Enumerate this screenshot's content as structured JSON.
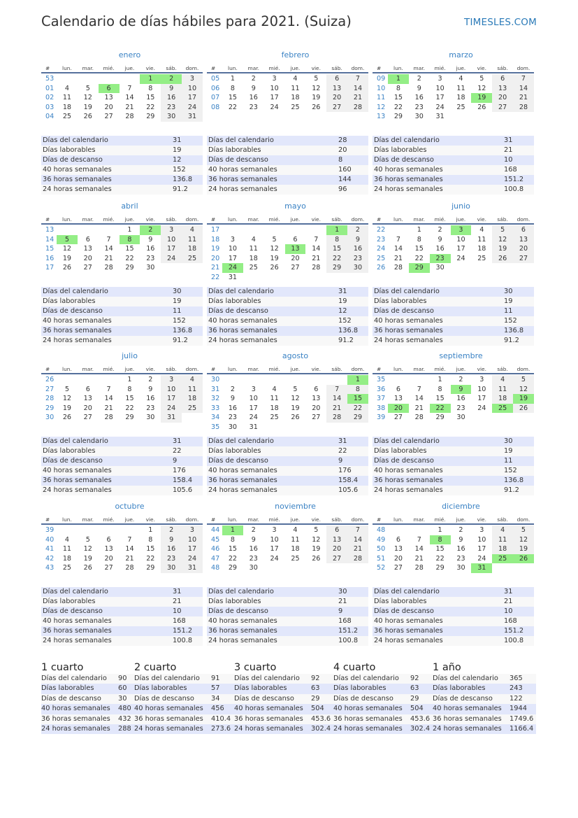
{
  "header": {
    "title": "Calendario de días hábiles para 2021. (Suiza)",
    "brand": "TIMESLES.COM"
  },
  "colors": {
    "accent": "#3a82c4",
    "holiday": "#94ee86",
    "weekend": "#f0f0f0",
    "stat_row": "#e2e7fb",
    "header_rule": "#55709c"
  },
  "weekday_headers": [
    "#",
    "lun.",
    "mar.",
    "mié.",
    "jue.",
    "vie.",
    "sáb.",
    "dom."
  ],
  "stat_labels": [
    "Días del calendario",
    "Días laborables",
    "Días de descanso",
    "40 horas semanales",
    "36 horas semanales",
    "24 horas semanales"
  ],
  "months": [
    {
      "name": "enero",
      "holidays": [
        "1",
        "2",
        "6"
      ],
      "stats": [
        "31",
        "19",
        "12",
        "152",
        "136.8",
        "91.2"
      ],
      "weeks": [
        {
          "wk": "53",
          "days": [
            "",
            "",
            "",
            "",
            "1",
            "2",
            "3"
          ]
        },
        {
          "wk": "01",
          "days": [
            "4",
            "5",
            "6",
            "7",
            "8",
            "9",
            "10"
          ]
        },
        {
          "wk": "02",
          "days": [
            "11",
            "12",
            "13",
            "14",
            "15",
            "16",
            "17"
          ]
        },
        {
          "wk": "03",
          "days": [
            "18",
            "19",
            "20",
            "21",
            "22",
            "23",
            "24"
          ]
        },
        {
          "wk": "04",
          "days": [
            "25",
            "26",
            "27",
            "28",
            "29",
            "30",
            "31"
          ]
        }
      ]
    },
    {
      "name": "febrero",
      "holidays": [],
      "stats": [
        "28",
        "20",
        "8",
        "160",
        "144",
        "96"
      ],
      "weeks": [
        {
          "wk": "05",
          "days": [
            "1",
            "2",
            "3",
            "4",
            "5",
            "6",
            "7"
          ]
        },
        {
          "wk": "06",
          "days": [
            "8",
            "9",
            "10",
            "11",
            "12",
            "13",
            "14"
          ]
        },
        {
          "wk": "07",
          "days": [
            "15",
            "16",
            "17",
            "18",
            "19",
            "20",
            "21"
          ]
        },
        {
          "wk": "08",
          "days": [
            "22",
            "23",
            "24",
            "25",
            "26",
            "27",
            "28"
          ]
        }
      ]
    },
    {
      "name": "marzo",
      "holidays": [
        "1",
        "19"
      ],
      "stats": [
        "31",
        "21",
        "10",
        "168",
        "151.2",
        "100.8"
      ],
      "weeks": [
        {
          "wk": "09",
          "days": [
            "1",
            "2",
            "3",
            "4",
            "5",
            "6",
            "7"
          ]
        },
        {
          "wk": "10",
          "days": [
            "8",
            "9",
            "10",
            "11",
            "12",
            "13",
            "14"
          ]
        },
        {
          "wk": "11",
          "days": [
            "15",
            "16",
            "17",
            "18",
            "19",
            "20",
            "21"
          ]
        },
        {
          "wk": "12",
          "days": [
            "22",
            "23",
            "24",
            "25",
            "26",
            "27",
            "28"
          ]
        },
        {
          "wk": "13",
          "days": [
            "29",
            "30",
            "31",
            "",
            "",
            "",
            ""
          ]
        }
      ]
    },
    {
      "name": "abril",
      "holidays": [
        "2",
        "5",
        "8"
      ],
      "stats": [
        "30",
        "19",
        "11",
        "152",
        "136.8",
        "91.2"
      ],
      "weeks": [
        {
          "wk": "13",
          "days": [
            "",
            "",
            "",
            "1",
            "2",
            "3",
            "4"
          ]
        },
        {
          "wk": "14",
          "days": [
            "5",
            "6",
            "7",
            "8",
            "9",
            "10",
            "11"
          ]
        },
        {
          "wk": "15",
          "days": [
            "12",
            "13",
            "14",
            "15",
            "16",
            "17",
            "18"
          ]
        },
        {
          "wk": "16",
          "days": [
            "19",
            "20",
            "21",
            "22",
            "23",
            "24",
            "25"
          ]
        },
        {
          "wk": "17",
          "days": [
            "26",
            "27",
            "28",
            "29",
            "30",
            "",
            ""
          ]
        }
      ]
    },
    {
      "name": "mayo",
      "holidays": [
        "1",
        "13",
        "24"
      ],
      "stats": [
        "31",
        "19",
        "12",
        "152",
        "136.8",
        "91.2"
      ],
      "weeks": [
        {
          "wk": "17",
          "days": [
            "",
            "",
            "",
            "",
            "",
            "1",
            "2"
          ]
        },
        {
          "wk": "18",
          "days": [
            "3",
            "4",
            "5",
            "6",
            "7",
            "8",
            "9"
          ]
        },
        {
          "wk": "19",
          "days": [
            "10",
            "11",
            "12",
            "13",
            "14",
            "15",
            "16"
          ]
        },
        {
          "wk": "20",
          "days": [
            "17",
            "18",
            "19",
            "20",
            "21",
            "22",
            "23"
          ]
        },
        {
          "wk": "21",
          "days": [
            "24",
            "25",
            "26",
            "27",
            "28",
            "29",
            "30"
          ]
        },
        {
          "wk": "22",
          "days": [
            "31",
            "",
            "",
            "",
            "",
            "",
            ""
          ]
        }
      ]
    },
    {
      "name": "junio",
      "holidays": [
        "3",
        "23",
        "29"
      ],
      "stats": [
        "30",
        "19",
        "11",
        "152",
        "136.8",
        "91.2"
      ],
      "weeks": [
        {
          "wk": "22",
          "days": [
            "",
            "1",
            "2",
            "3",
            "4",
            "5",
            "6"
          ]
        },
        {
          "wk": "23",
          "days": [
            "7",
            "8",
            "9",
            "10",
            "11",
            "12",
            "13"
          ]
        },
        {
          "wk": "24",
          "days": [
            "14",
            "15",
            "16",
            "17",
            "18",
            "19",
            "20"
          ]
        },
        {
          "wk": "25",
          "days": [
            "21",
            "22",
            "23",
            "24",
            "25",
            "26",
            "27"
          ]
        },
        {
          "wk": "26",
          "days": [
            "28",
            "29",
            "30",
            "",
            "",
            "",
            ""
          ]
        }
      ]
    },
    {
      "name": "julio",
      "holidays": [],
      "stats": [
        "31",
        "22",
        "9",
        "176",
        "158.4",
        "105.6"
      ],
      "weeks": [
        {
          "wk": "26",
          "days": [
            "",
            "",
            "",
            "1",
            "2",
            "3",
            "4"
          ]
        },
        {
          "wk": "27",
          "days": [
            "5",
            "6",
            "7",
            "8",
            "9",
            "10",
            "11"
          ]
        },
        {
          "wk": "28",
          "days": [
            "12",
            "13",
            "14",
            "15",
            "16",
            "17",
            "18"
          ]
        },
        {
          "wk": "29",
          "days": [
            "19",
            "20",
            "21",
            "22",
            "23",
            "24",
            "25"
          ]
        },
        {
          "wk": "30",
          "days": [
            "26",
            "27",
            "28",
            "29",
            "30",
            "31",
            ""
          ]
        }
      ]
    },
    {
      "name": "agosto",
      "holidays": [
        "1",
        "15"
      ],
      "stats": [
        "31",
        "22",
        "9",
        "176",
        "158.4",
        "105.6"
      ],
      "weeks": [
        {
          "wk": "30",
          "days": [
            "",
            "",
            "",
            "",
            "",
            "",
            "1"
          ]
        },
        {
          "wk": "31",
          "days": [
            "2",
            "3",
            "4",
            "5",
            "6",
            "7",
            "8"
          ]
        },
        {
          "wk": "32",
          "days": [
            "9",
            "10",
            "11",
            "12",
            "13",
            "14",
            "15"
          ]
        },
        {
          "wk": "33",
          "days": [
            "16",
            "17",
            "18",
            "19",
            "20",
            "21",
            "22"
          ]
        },
        {
          "wk": "34",
          "days": [
            "23",
            "24",
            "25",
            "26",
            "27",
            "28",
            "29"
          ]
        },
        {
          "wk": "35",
          "days": [
            "30",
            "31",
            "",
            "",
            "",
            "",
            ""
          ]
        }
      ]
    },
    {
      "name": "septiembre",
      "holidays": [
        "9",
        "19",
        "20",
        "22",
        "25"
      ],
      "stats": [
        "30",
        "19",
        "11",
        "152",
        "136.8",
        "91.2"
      ],
      "weeks": [
        {
          "wk": "35",
          "days": [
            "",
            "",
            "1",
            "2",
            "3",
            "4",
            "5"
          ]
        },
        {
          "wk": "36",
          "days": [
            "6",
            "7",
            "8",
            "9",
            "10",
            "11",
            "12"
          ]
        },
        {
          "wk": "37",
          "days": [
            "13",
            "14",
            "15",
            "16",
            "17",
            "18",
            "19"
          ]
        },
        {
          "wk": "38",
          "days": [
            "20",
            "21",
            "22",
            "23",
            "24",
            "25",
            "26"
          ]
        },
        {
          "wk": "39",
          "days": [
            "27",
            "28",
            "29",
            "30",
            "",
            "",
            ""
          ]
        }
      ]
    },
    {
      "name": "octubre",
      "holidays": [],
      "stats": [
        "31",
        "21",
        "10",
        "168",
        "151.2",
        "100.8"
      ],
      "weeks": [
        {
          "wk": "39",
          "days": [
            "",
            "",
            "",
            "",
            "1",
            "2",
            "3"
          ]
        },
        {
          "wk": "40",
          "days": [
            "4",
            "5",
            "6",
            "7",
            "8",
            "9",
            "10"
          ]
        },
        {
          "wk": "41",
          "days": [
            "11",
            "12",
            "13",
            "14",
            "15",
            "16",
            "17"
          ]
        },
        {
          "wk": "42",
          "days": [
            "18",
            "19",
            "20",
            "21",
            "22",
            "23",
            "24"
          ]
        },
        {
          "wk": "43",
          "days": [
            "25",
            "26",
            "27",
            "28",
            "29",
            "30",
            "31"
          ]
        }
      ]
    },
    {
      "name": "noviembre",
      "holidays": [
        "1"
      ],
      "stats": [
        "30",
        "21",
        "9",
        "168",
        "151.2",
        "100.8"
      ],
      "weeks": [
        {
          "wk": "44",
          "days": [
            "1",
            "2",
            "3",
            "4",
            "5",
            "6",
            "7"
          ]
        },
        {
          "wk": "45",
          "days": [
            "8",
            "9",
            "10",
            "11",
            "12",
            "13",
            "14"
          ]
        },
        {
          "wk": "46",
          "days": [
            "15",
            "16",
            "17",
            "18",
            "19",
            "20",
            "21"
          ]
        },
        {
          "wk": "47",
          "days": [
            "22",
            "23",
            "24",
            "25",
            "26",
            "27",
            "28"
          ]
        },
        {
          "wk": "48",
          "days": [
            "29",
            "30",
            "",
            "",
            "",
            "",
            ""
          ]
        }
      ]
    },
    {
      "name": "diciembre",
      "holidays": [
        "8",
        "25",
        "26",
        "31"
      ],
      "stats": [
        "31",
        "21",
        "10",
        "168",
        "151.2",
        "100.8"
      ],
      "weeks": [
        {
          "wk": "48",
          "days": [
            "",
            "",
            "1",
            "2",
            "3",
            "4",
            "5"
          ]
        },
        {
          "wk": "49",
          "days": [
            "6",
            "7",
            "8",
            "9",
            "10",
            "11",
            "12"
          ]
        },
        {
          "wk": "50",
          "days": [
            "13",
            "14",
            "15",
            "16",
            "17",
            "18",
            "19"
          ]
        },
        {
          "wk": "51",
          "days": [
            "20",
            "21",
            "22",
            "23",
            "24",
            "25",
            "26"
          ]
        },
        {
          "wk": "52",
          "days": [
            "27",
            "28",
            "29",
            "30",
            "31",
            "",
            ""
          ]
        }
      ]
    }
  ],
  "summaries": [
    {
      "title": "1 cuarto",
      "stats": [
        "90",
        "60",
        "30",
        "480",
        "432",
        "288"
      ]
    },
    {
      "title": "2 cuarto",
      "stats": [
        "91",
        "57",
        "34",
        "456",
        "410.4",
        "273.6"
      ]
    },
    {
      "title": "3 cuarto",
      "stats": [
        "92",
        "63",
        "29",
        "504",
        "453.6",
        "302.4"
      ]
    },
    {
      "title": "4 cuarto",
      "stats": [
        "92",
        "63",
        "29",
        "504",
        "453.6",
        "302.4"
      ]
    },
    {
      "title": "1 año",
      "stats": [
        "365",
        "243",
        "122",
        "1944",
        "1749.6",
        "1166.4"
      ]
    }
  ]
}
